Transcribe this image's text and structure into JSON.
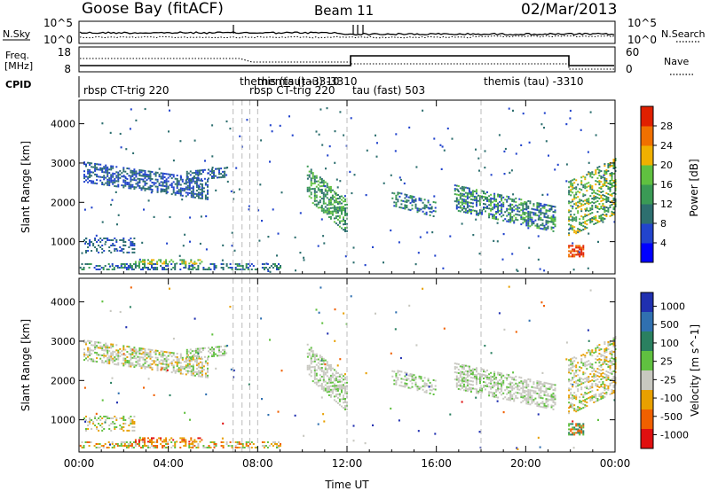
{
  "header": {
    "station": "Goose Bay (fitACF)",
    "beam": "Beam 11",
    "date": "02/Mar/2013"
  },
  "strips": {
    "nsky": {
      "left_label": "N.Sky",
      "left_ticks": [
        "10^5",
        "10^0"
      ],
      "right_label": "N.Search",
      "right_ticks": [
        "10^5",
        "10^0"
      ]
    },
    "freq": {
      "left_label": "Freq.",
      "left_unit": "[MHz]",
      "left_ticks": [
        "18",
        "8"
      ],
      "right_label": "Nave",
      "right_ticks": [
        "60",
        "0"
      ]
    },
    "cpid": {
      "label": "CPID",
      "entries": [
        {
          "text": "rbsp CT-trig 220",
          "time": 0.1
        },
        {
          "text": "themis (tau) -3310",
          "time": 7.0
        },
        {
          "text": "themis (tau) -3310",
          "time": 8.0
        },
        {
          "text": "rbsp CT-trig 220",
          "time": 7.6
        },
        {
          "text": "tau (fast) 503",
          "time": 12.05
        },
        {
          "text": "themis (tau) -3310",
          "time": 18.0
        }
      ]
    }
  },
  "chart_data": [
    {
      "type": "heatmap",
      "name": "Power",
      "ylabel": "Slant Range [km]",
      "xlim": [
        0,
        24
      ],
      "ylim": [
        180,
        4600
      ],
      "yticks": [
        1000,
        2000,
        3000,
        4000
      ],
      "colorbar": {
        "label": "Power [dB]",
        "ticks": [
          "4",
          "8",
          "12",
          "16",
          "20",
          "24",
          "28"
        ],
        "colors": [
          "#0000ff",
          "#2244cc",
          "#2d6f6f",
          "#3a9a55",
          "#60c040",
          "#f0b000",
          "#f07000",
          "#e02000"
        ]
      }
    },
    {
      "type": "heatmap",
      "name": "Velocity",
      "ylabel": "Slant Range [km]",
      "xlabel": "Time UT",
      "xlim": [
        0,
        24
      ],
      "ylim": [
        180,
        4600
      ],
      "yticks": [
        1000,
        2000,
        3000,
        4000
      ],
      "xticks": [
        "00:00",
        "04:00",
        "08:00",
        "12:00",
        "16:00",
        "20:00",
        "00:00"
      ],
      "xtick_hours": [
        0,
        4,
        8,
        12,
        16,
        20,
        24
      ],
      "colorbar": {
        "label": "Velocity [m s^-1]",
        "ticks": [
          "1000",
          "500",
          "100",
          "25",
          "-25",
          "-100",
          "-500",
          "-1000"
        ],
        "colors": [
          "#2030b0",
          "#3070b0",
          "#2a8060",
          "#60c040",
          "#c8c8c0",
          "#e8a000",
          "#f06000",
          "#e01010"
        ]
      }
    }
  ],
  "colors": {
    "background": "#ffffff",
    "axes": "#000000",
    "guides": "#bbbbbb"
  }
}
